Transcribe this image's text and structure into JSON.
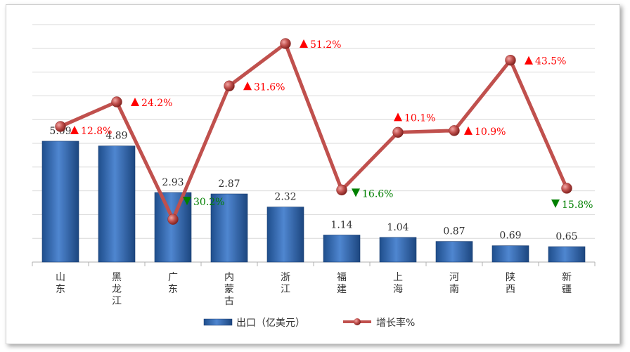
{
  "chart_data": {
    "type": "bar",
    "categories": [
      "山东",
      "黑龙江",
      "广东",
      "内蒙古",
      "浙江",
      "福建",
      "上海",
      "河南",
      "陕西",
      "新疆"
    ],
    "series": [
      {
        "name": "出口（亿美元）",
        "type": "bar",
        "axis": "left",
        "values": [
          5.09,
          4.89,
          2.93,
          2.87,
          2.32,
          1.14,
          1.04,
          0.87,
          0.69,
          0.65
        ],
        "labels": [
          "5.09",
          "4.89",
          "2.93",
          "2.87",
          "2.32",
          "1.14",
          "1.04",
          "0.87",
          "0.69",
          "0.65"
        ],
        "color": "#2e5fa8"
      },
      {
        "name": "增长率%",
        "type": "line",
        "axis": "right",
        "values": [
          12.8,
          24.2,
          -30.2,
          31.6,
          51.2,
          -16.6,
          10.1,
          10.9,
          43.5,
          -15.8
        ],
        "labels": [
          "12.8%",
          "24.2%",
          "30.2%",
          "31.6%",
          "51.2%",
          "16.6%",
          "10.1%",
          "10.9%",
          "43.5%",
          "15.8%"
        ],
        "color": "#c0504d"
      }
    ],
    "bar_ylim": [
      0,
      10
    ],
    "line_ylim": [
      -50,
      60
    ],
    "up_color": "#ff0000",
    "down_color": "#008000",
    "grid": true,
    "legend_position": "bottom"
  }
}
